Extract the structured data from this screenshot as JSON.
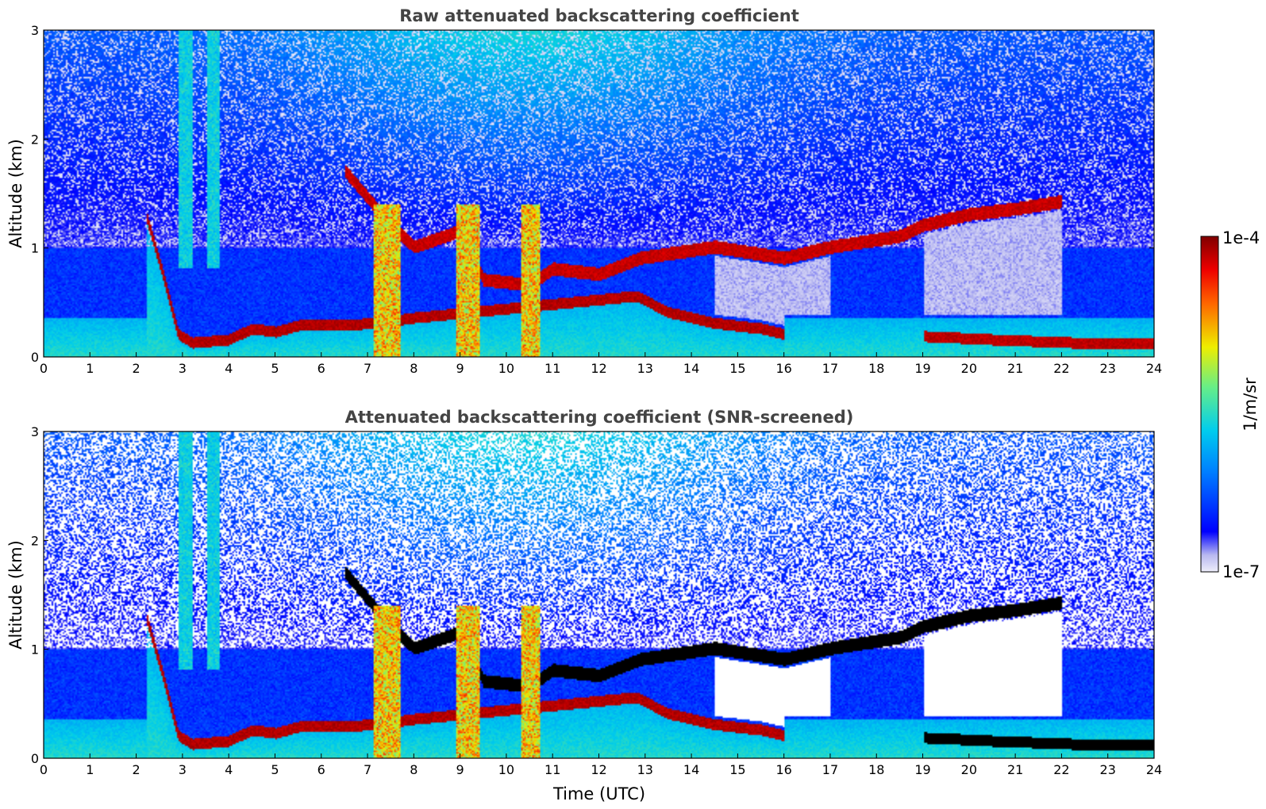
{
  "chart_data": [
    {
      "type": "heatmap",
      "title": "Raw attenuated backscattering coefficient",
      "xlabel": "",
      "ylabel": "Altitude (km)",
      "xlim": [
        0,
        24
      ],
      "ylim": [
        0,
        3
      ],
      "x_ticks": [
        "0",
        "1",
        "2",
        "3",
        "4",
        "5",
        "6",
        "7",
        "8",
        "9",
        "10",
        "11",
        "12",
        "13",
        "14",
        "15",
        "16",
        "17",
        "18",
        "19",
        "20",
        "21",
        "22",
        "23",
        "24"
      ],
      "y_ticks": [
        "0",
        "1",
        "2",
        "3"
      ],
      "screened": false,
      "features": {
        "boundary_layer_top_km": [
          [
            2.2,
            1.3
          ],
          [
            2.6,
            0.7
          ],
          [
            2.9,
            0.2
          ],
          [
            3.2,
            0.12
          ],
          [
            4,
            0.15
          ],
          [
            4.5,
            0.25
          ],
          [
            5,
            0.22
          ],
          [
            5.5,
            0.28
          ],
          [
            6.3,
            0.28
          ],
          [
            7.2,
            0.3
          ],
          [
            8,
            0.35
          ],
          [
            12.8,
            0.55
          ],
          [
            13.5,
            0.4
          ],
          [
            14.5,
            0.3
          ],
          [
            15.5,
            0.25
          ],
          [
            16,
            0.2
          ]
        ],
        "cloud_layer_km": [
          [
            6.5,
            1.7
          ],
          [
            7.5,
            1.2
          ],
          [
            8,
            1.0
          ],
          [
            9,
            1.15
          ],
          [
            9.5,
            0.7
          ],
          [
            10.5,
            0.65
          ],
          [
            11,
            0.8
          ],
          [
            12,
            0.75
          ],
          [
            12.9,
            0.9
          ],
          [
            14.5,
            1.0
          ],
          [
            16,
            0.9
          ],
          [
            17,
            1.0
          ],
          [
            18.5,
            1.1
          ],
          [
            19,
            1.2
          ],
          [
            20,
            1.3
          ],
          [
            21,
            1.35
          ],
          [
            22,
            1.42
          ]
        ],
        "low_cloud_km": [
          [
            19,
            0.18
          ],
          [
            20.5,
            0.15
          ],
          [
            22.3,
            0.12
          ],
          [
            24,
            0.12
          ]
        ]
      }
    },
    {
      "type": "heatmap",
      "title": "Attenuated backscattering coefficient (SNR-screened)",
      "xlabel": "Time (UTC)",
      "ylabel": "Altitude (km)",
      "xlim": [
        0,
        24
      ],
      "ylim": [
        0,
        3
      ],
      "x_ticks": [
        "0",
        "1",
        "2",
        "3",
        "4",
        "5",
        "6",
        "7",
        "8",
        "9",
        "10",
        "11",
        "12",
        "13",
        "14",
        "15",
        "16",
        "17",
        "18",
        "19",
        "20",
        "21",
        "22",
        "23",
        "24"
      ],
      "y_ticks": [
        "0",
        "1",
        "2",
        "3"
      ],
      "screened": true
    }
  ],
  "colorbar": {
    "min_label": "1e-7",
    "max_label": "1e-4",
    "label": "1/m/sr",
    "colormap": "jet",
    "low_color": "#e8e8f8",
    "high_color": "#800000"
  }
}
